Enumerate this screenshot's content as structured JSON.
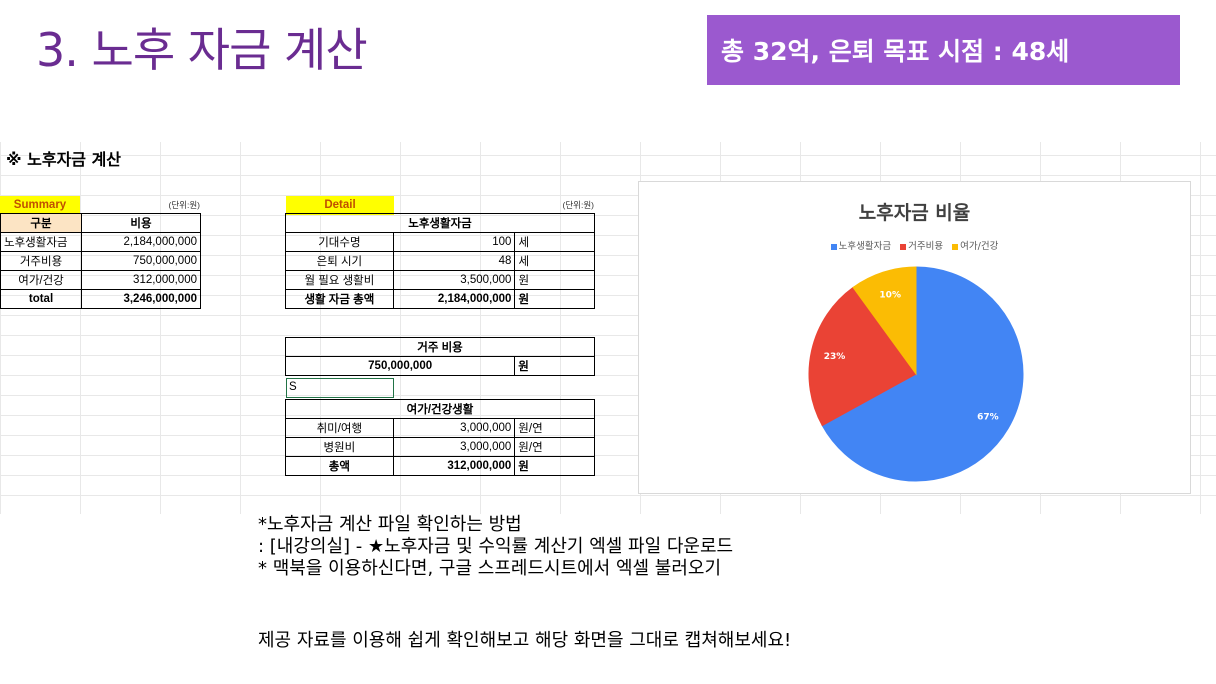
{
  "slide": {
    "title": "3. 노후 자금 계산",
    "badge": "총 32억, 은퇴 목표 시점 : 48세"
  },
  "sheet": {
    "title": "※ 노후자금 계산",
    "summary": {
      "label": "Summary",
      "unit": "(단위:원)",
      "headers": [
        "구분",
        "비용"
      ],
      "rows": [
        {
          "name": "노후생활자금",
          "value": "2,184,000,000"
        },
        {
          "name": "거주비용",
          "value": "750,000,000"
        },
        {
          "name": "여가/건강",
          "value": "312,000,000"
        },
        {
          "name": "total",
          "value": "3,246,000,000"
        }
      ]
    },
    "detail": {
      "label": "Detail",
      "unit": "(단위:원)",
      "living": {
        "header": "노후생활자금",
        "rows": [
          {
            "name": "기대수명",
            "value": "100",
            "unit": "세"
          },
          {
            "name": "은퇴 시기",
            "value": "48",
            "unit": "세"
          },
          {
            "name": "월 필요 생활비",
            "value": "3,500,000",
            "unit": "원"
          },
          {
            "name": "생활 자금 총액",
            "value": "2,184,000,000",
            "unit": "원"
          }
        ]
      },
      "housing": {
        "header": "거주 비용",
        "value": "750,000,000",
        "unit": "원"
      },
      "active_cell": "S",
      "leisure": {
        "header": "여가/건강생활",
        "rows": [
          {
            "name": "취미/여행",
            "value": "3,000,000",
            "unit": "원/연"
          },
          {
            "name": "병원비",
            "value": "3,000,000",
            "unit": "원/연"
          },
          {
            "name": "총액",
            "value": "312,000,000",
            "unit": "원"
          }
        ]
      }
    }
  },
  "chart_data": {
    "type": "pie",
    "title": "노후자금 비율",
    "categories": [
      "노후생활자금",
      "거주비용",
      "여가/건강"
    ],
    "values": [
      67,
      23,
      10
    ],
    "labels": [
      "67%",
      "23%",
      "10%"
    ],
    "colors": [
      "#4285f4",
      "#ea4335",
      "#fbbc04"
    ],
    "legend_position": "top"
  },
  "notes": {
    "lines": [
      "*노후자금 계산 파일 확인하는 방법",
      ": [내강의실] - ★노후자금 및 수익률 계산기 엑셀 파일 다운로드",
      "* 맥북을 이용하신다면, 구글 스프레드시트에서 엑셀 불러오기"
    ],
    "final": "제공 자료를 이용해 쉽게 확인해보고 해당 화면을 그대로 캡쳐해보세요!"
  }
}
